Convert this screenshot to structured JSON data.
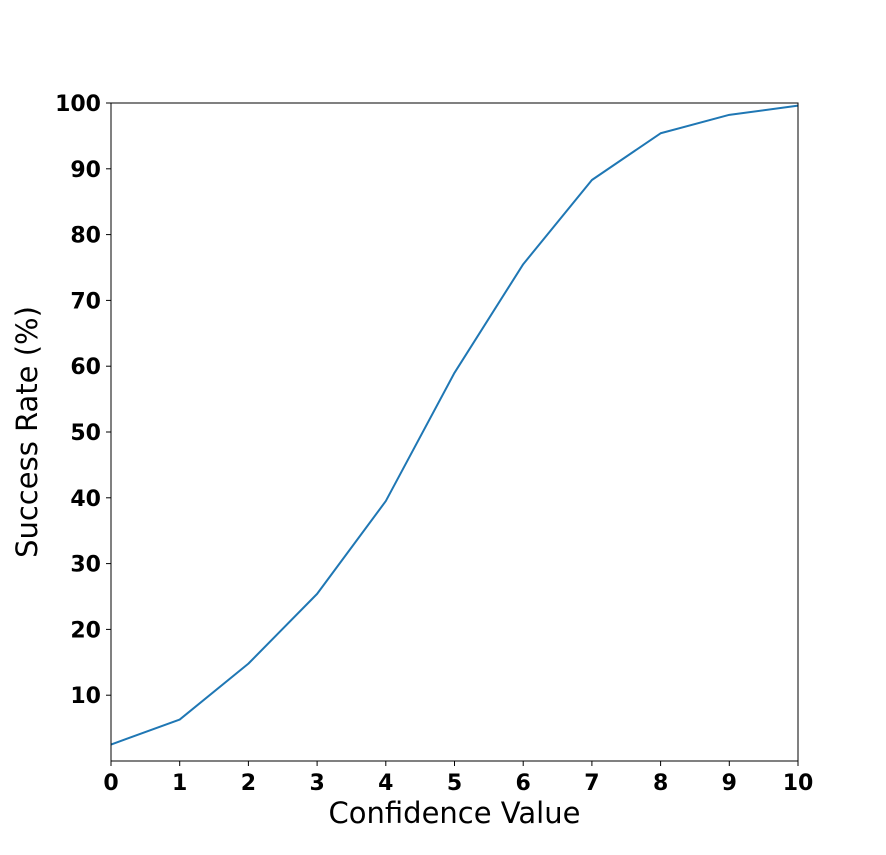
{
  "chart_data": {
    "type": "line",
    "title": "",
    "xlabel": "Confidence Value",
    "ylabel": "Success Rate (%)",
    "xlim": [
      0,
      10
    ],
    "ylim": [
      0,
      100
    ],
    "xticks": [
      0,
      1,
      2,
      3,
      4,
      5,
      6,
      7,
      8,
      9,
      10
    ],
    "yticks": [
      10,
      20,
      30,
      40,
      50,
      60,
      70,
      80,
      90,
      100
    ],
    "grid": false,
    "legend": "none",
    "series": [
      {
        "color": "#1f77b4",
        "x": [
          0,
          1,
          2,
          3,
          4,
          5,
          6,
          7,
          8,
          9,
          10
        ],
        "y": [
          2.5,
          6.3,
          14.8,
          25.4,
          39.5,
          59.0,
          75.5,
          88.3,
          95.4,
          98.2,
          99.6
        ]
      }
    ]
  }
}
